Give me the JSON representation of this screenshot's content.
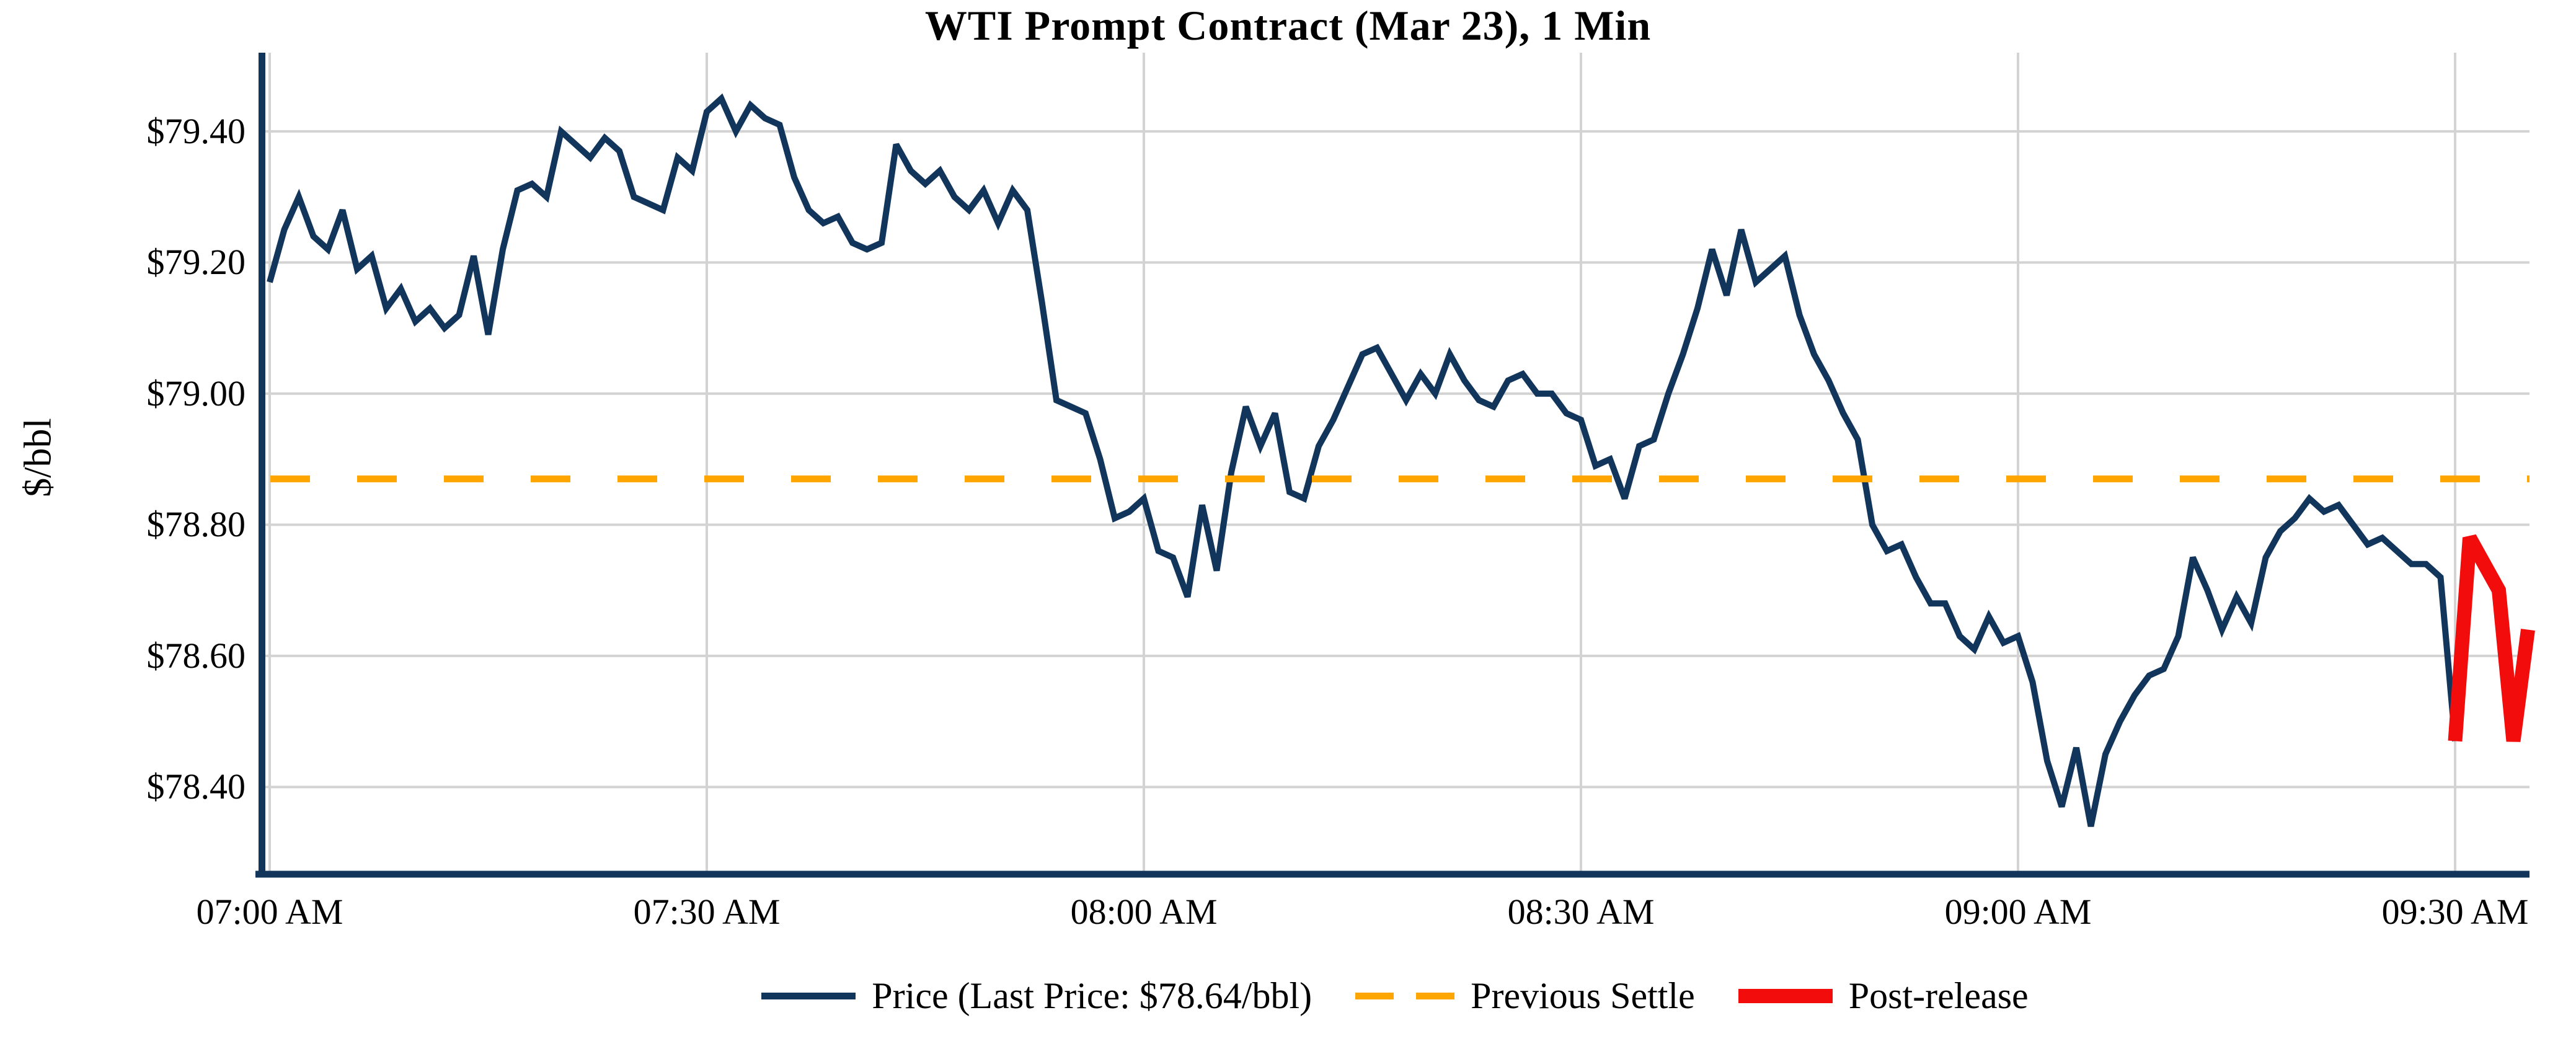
{
  "chart_data": {
    "type": "line",
    "title": "WTI Prompt Contract (Mar 23), 1 Min",
    "xlabel": "",
    "ylabel": "$/bbl",
    "grid": true,
    "legend_position": "bottom",
    "last_price_label": "$78.64/bbl",
    "previous_settle_value": 78.87,
    "x_axis": {
      "tick_labels": [
        "07:00 AM",
        "07:30 AM",
        "08:00 AM",
        "08:30 AM",
        "09:00 AM",
        "09:30 AM"
      ],
      "tick_minutes": [
        0,
        30,
        60,
        90,
        120,
        150
      ],
      "minutes_per_point": 1,
      "domain_minutes": [
        0,
        155
      ]
    },
    "y_axis": {
      "tick_labels": [
        "$78.40",
        "$78.60",
        "$78.80",
        "$79.00",
        "$79.20",
        "$79.40"
      ],
      "tick_values": [
        78.4,
        78.6,
        78.8,
        79.0,
        79.2,
        79.4
      ],
      "ylim": [
        78.267,
        79.52
      ]
    },
    "series": [
      {
        "name": "Price (Last Price: $78.64/bbl)",
        "type": "line",
        "style": "solid",
        "color": "#12355B",
        "stroke_width": 10,
        "start_minute": 0,
        "values": [
          79.17,
          79.25,
          79.3,
          79.24,
          79.22,
          79.28,
          79.19,
          79.21,
          79.13,
          79.16,
          79.11,
          79.13,
          79.1,
          79.12,
          79.21,
          79.09,
          79.22,
          79.31,
          79.32,
          79.3,
          79.4,
          79.38,
          79.36,
          79.39,
          79.37,
          79.3,
          79.29,
          79.28,
          79.36,
          79.34,
          79.43,
          79.45,
          79.4,
          79.44,
          79.42,
          79.41,
          79.33,
          79.28,
          79.26,
          79.27,
          79.23,
          79.22,
          79.23,
          79.38,
          79.34,
          79.32,
          79.34,
          79.3,
          79.28,
          79.31,
          79.26,
          79.31,
          79.28,
          79.14,
          78.99,
          78.98,
          78.97,
          78.9,
          78.81,
          78.82,
          78.84,
          78.76,
          78.75,
          78.69,
          78.83,
          78.73,
          78.88,
          78.98,
          78.92,
          78.97,
          78.85,
          78.84,
          78.92,
          78.96,
          79.01,
          79.06,
          79.07,
          79.03,
          78.99,
          79.03,
          79.0,
          79.06,
          79.02,
          78.99,
          78.98,
          79.02,
          79.03,
          79.0,
          79.0,
          78.97,
          78.96,
          78.89,
          78.9,
          78.84,
          78.92,
          78.93,
          79.0,
          79.06,
          79.13,
          79.22,
          79.15,
          79.25,
          79.17,
          79.19,
          79.21,
          79.12,
          79.06,
          79.02,
          78.97,
          78.93,
          78.8,
          78.76,
          78.77,
          78.72,
          78.68,
          78.68,
          78.63,
          78.61,
          78.66,
          78.62,
          78.63,
          78.56,
          78.44,
          78.37,
          78.46,
          78.34,
          78.45,
          78.5,
          78.54,
          78.57,
          78.58,
          78.63,
          78.75,
          78.7,
          78.64,
          78.69,
          78.65,
          78.75,
          78.79,
          78.81,
          78.84,
          78.82,
          78.83,
          78.8,
          78.77,
          78.78,
          78.76,
          78.74,
          78.74,
          78.72,
          78.47
        ]
      },
      {
        "name": "Previous Settle",
        "type": "hline",
        "style": "dashed",
        "color": "#FFA500",
        "stroke_width": 11,
        "value": 78.87
      },
      {
        "name": "Post-release",
        "type": "line",
        "style": "solid",
        "color": "#F20C0C",
        "stroke_width": 23,
        "start_minute": 150,
        "values": [
          78.47,
          78.78,
          78.74,
          78.7,
          78.47,
          78.64
        ]
      }
    ],
    "colors": {
      "grid": "#D3D3D3",
      "axis": "#12355B",
      "text": "#000000",
      "background": "#FFFFFF"
    }
  }
}
